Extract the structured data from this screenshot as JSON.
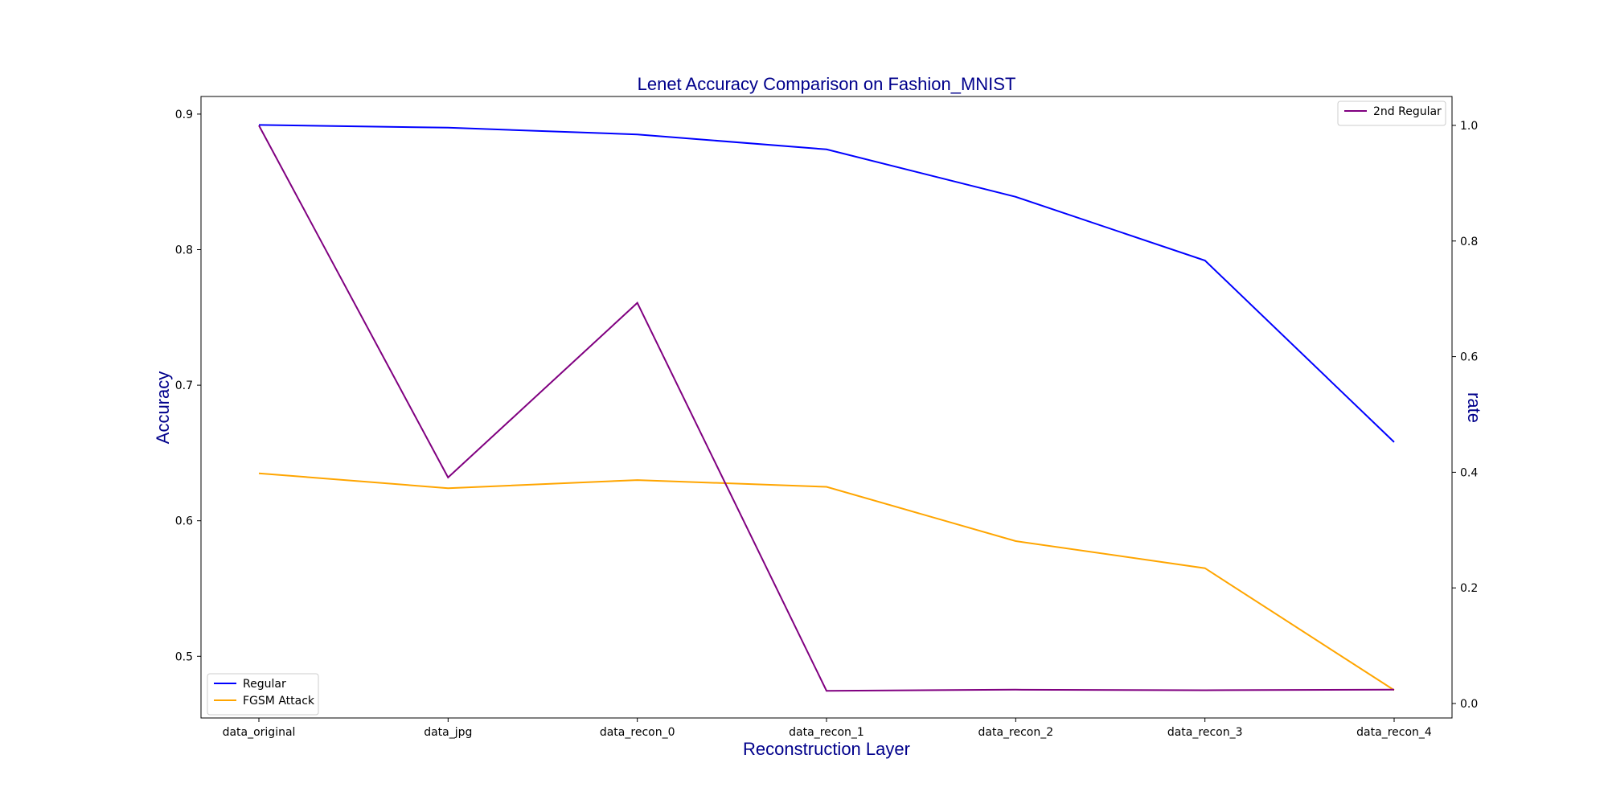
{
  "chart_data": {
    "type": "line",
    "title": "Lenet Accuracy Comparison on Fashion_MNIST",
    "xlabel": "Reconstruction Layer",
    "ylabel_left": "Accuracy",
    "ylabel_right": "rate",
    "categories": [
      "data_original",
      "data_jpg",
      "data_recon_0",
      "data_recon_1",
      "data_recon_2",
      "data_recon_3",
      "data_recon_4"
    ],
    "y_left": {
      "range": [
        0.4545,
        0.913
      ],
      "ticks": [
        "0.5",
        "0.6",
        "0.7",
        "0.8",
        "0.9"
      ]
    },
    "y_right": {
      "range": [
        -0.025,
        1.05
      ],
      "ticks": [
        "0.0",
        "0.2",
        "0.4",
        "0.6",
        "0.8",
        "1.0"
      ]
    },
    "series": [
      {
        "name": "Regular",
        "axis": "left",
        "color": "#0000ff",
        "values": [
          0.892,
          0.89,
          0.885,
          0.874,
          0.839,
          0.792,
          0.658
        ]
      },
      {
        "name": "FGSM Attack",
        "axis": "left",
        "color": "#ffa500",
        "values": [
          0.635,
          0.624,
          0.63,
          0.625,
          0.585,
          0.565,
          0.475
        ]
      },
      {
        "name": "2nd Regular",
        "axis": "right",
        "color": "#800080",
        "values": [
          1.0,
          0.391,
          0.693,
          0.022,
          0.024,
          0.023,
          0.024
        ]
      }
    ],
    "legend_left": {
      "placement": "lower-left",
      "entries": [
        "Regular",
        "FGSM Attack"
      ]
    },
    "legend_right": {
      "placement": "upper-right",
      "entries": [
        "2nd Regular"
      ]
    },
    "grid": false
  }
}
